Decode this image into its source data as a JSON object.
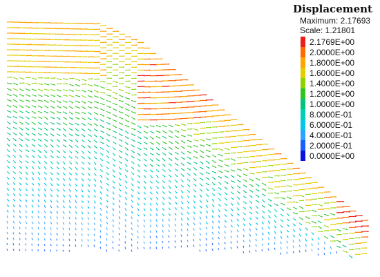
{
  "legend": {
    "title": "Displacement",
    "maximum_label": "Maximum: 2.17693",
    "scale_label": "Scale: 1.21801",
    "levels": [
      {
        "label": "2.1769E+00",
        "value": 2.1769,
        "color": "#ee1c1c"
      },
      {
        "label": "2.0000E+00",
        "value": 2.0,
        "color": "#ff6a00"
      },
      {
        "label": "1.8000E+00",
        "value": 1.8,
        "color": "#ffa500"
      },
      {
        "label": "1.6000E+00",
        "value": 1.6,
        "color": "#e3cf00"
      },
      {
        "label": "1.4000E+00",
        "value": 1.4,
        "color": "#8cd400"
      },
      {
        "label": "1.2000E+00",
        "value": 1.2,
        "color": "#2fc424"
      },
      {
        "label": "1.0000E+00",
        "value": 1.0,
        "color": "#00c47a"
      },
      {
        "label": "8.0000E-01",
        "value": 0.8,
        "color": "#00cfb8"
      },
      {
        "label": "6.0000E-01",
        "value": 0.6,
        "color": "#00c8e6"
      },
      {
        "label": "4.0000E-01",
        "value": 0.4,
        "color": "#2ea2ff"
      },
      {
        "label": "2.0000E-01",
        "value": 0.2,
        "color": "#1860ff"
      },
      {
        "label": "0.0000E+00",
        "value": 0.0,
        "color": "#0a10e0"
      }
    ]
  }
}
